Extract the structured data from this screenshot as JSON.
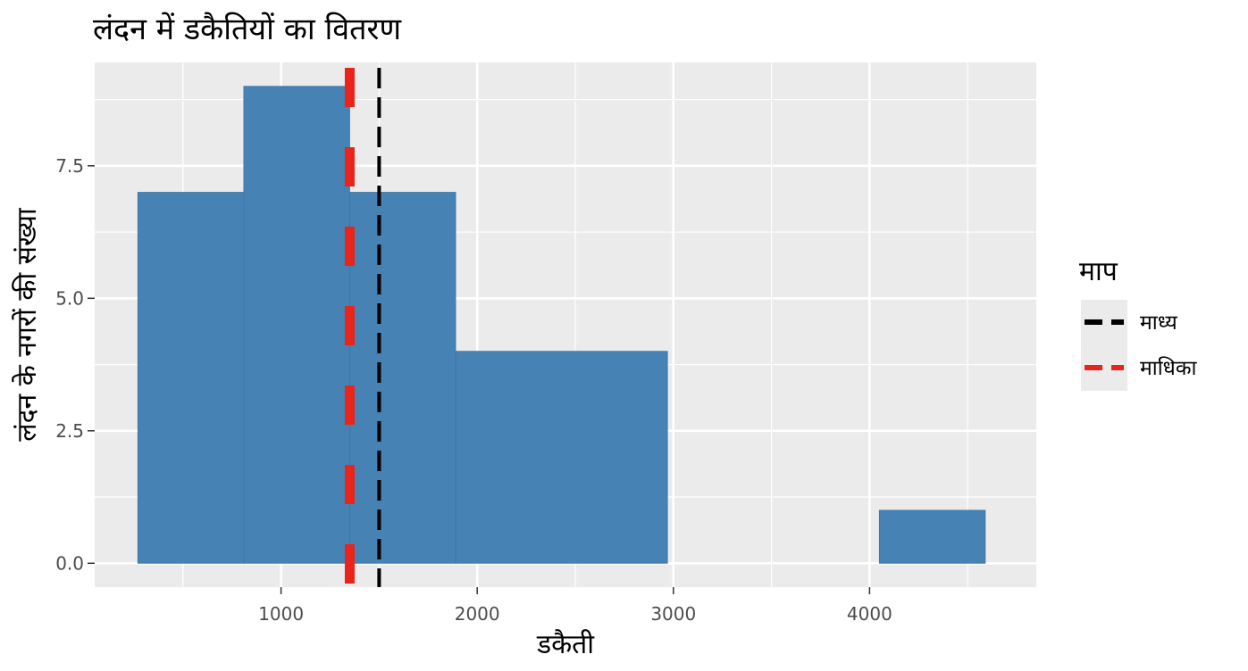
{
  "chart_data": {
    "type": "histogram",
    "title": "लंदन में डकैतियों का वितरण",
    "xlabel": "डकैती",
    "ylabel": "लंदन के नगरों की संख्या",
    "xlim": [
      50,
      4850
    ],
    "ylim": [
      -0.45,
      9.45
    ],
    "xticks": [
      1000,
      2000,
      3000,
      4000
    ],
    "xtick_labels": [
      "1000",
      "2000",
      "3000",
      "4000"
    ],
    "yticks": [
      0,
      2.5,
      5,
      7.5
    ],
    "ytick_labels": [
      "0.0",
      "2.5",
      "5.0",
      "7.5"
    ],
    "bins": [
      {
        "x0": 270,
        "x1": 810,
        "count": 7
      },
      {
        "x0": 810,
        "x1": 1350,
        "count": 9
      },
      {
        "x0": 1350,
        "x1": 1890,
        "count": 7
      },
      {
        "x0": 1890,
        "x1": 2970,
        "count": 4
      },
      {
        "x0": 4050,
        "x1": 4590,
        "count": 1
      }
    ],
    "bar_color": "#4682b4",
    "grid": true,
    "panel_background": "#ebebeb",
    "vlines": [
      {
        "name": "माध्य",
        "x": 1500,
        "color": "#000000",
        "style": "dashed"
      },
      {
        "name": "माधिका",
        "x": 1350,
        "color": "#e8241b",
        "style": "dashed"
      }
    ],
    "legend": {
      "title": "माप",
      "position": "right",
      "items": [
        "माध्य",
        "माधिका"
      ]
    }
  }
}
